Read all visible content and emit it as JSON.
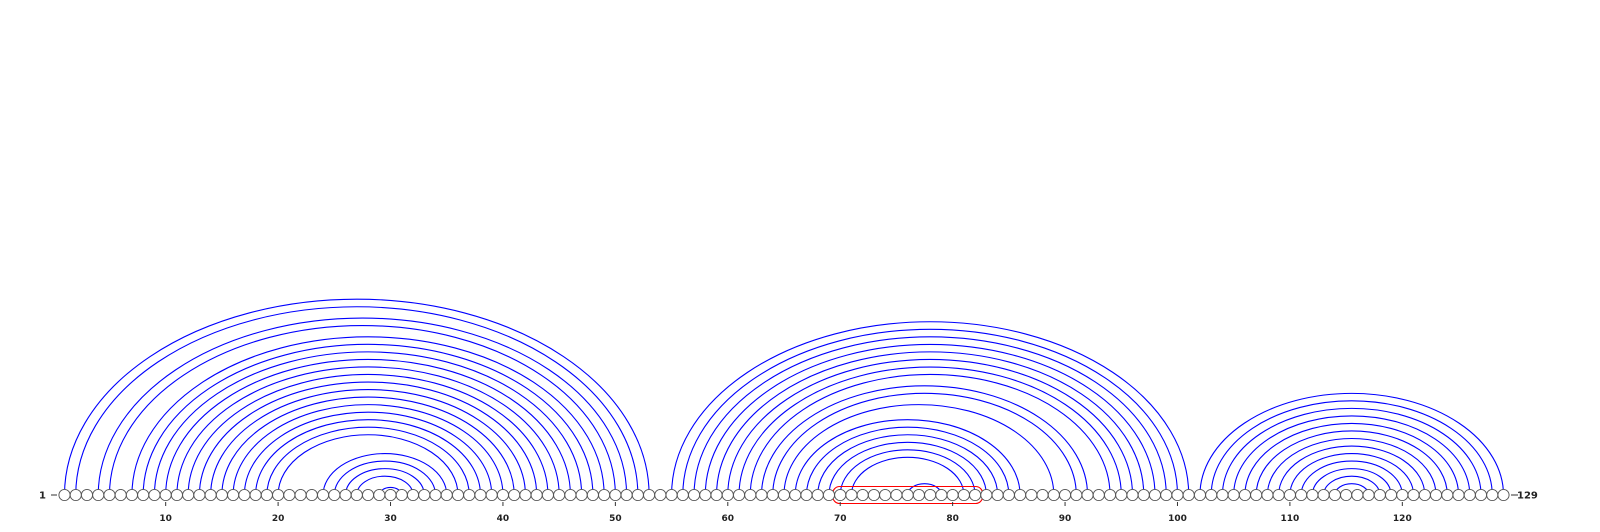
{
  "diagram": {
    "type": "rna-arc-diagram",
    "sequence_length": 129,
    "start_label": "1",
    "end_label": "129",
    "tick_positions": [
      10,
      20,
      30,
      40,
      50,
      60,
      70,
      80,
      90,
      100,
      110,
      120
    ],
    "tick_labels": [
      "10",
      "20",
      "30",
      "40",
      "50",
      "60",
      "70",
      "80",
      "90",
      "100",
      "110",
      "120"
    ],
    "arc_color": "#0000ff",
    "highlight_color": "#ff0000",
    "highlight_range": [
      70,
      82
    ],
    "base_pairs": [
      [
        1,
        53
      ],
      [
        2,
        52
      ],
      [
        4,
        51
      ],
      [
        5,
        50
      ],
      [
        7,
        49
      ],
      [
        8,
        48
      ],
      [
        9,
        47
      ],
      [
        10,
        46
      ],
      [
        11,
        45
      ],
      [
        12,
        44
      ],
      [
        13,
        43
      ],
      [
        14,
        42
      ],
      [
        15,
        41
      ],
      [
        16,
        40
      ],
      [
        17,
        39
      ],
      [
        18,
        38
      ],
      [
        19,
        37
      ],
      [
        20,
        36
      ],
      [
        24,
        35
      ],
      [
        25,
        34
      ],
      [
        26,
        33
      ],
      [
        27,
        32
      ],
      [
        29,
        31
      ],
      [
        55,
        101
      ],
      [
        56,
        100
      ],
      [
        57,
        99
      ],
      [
        58,
        98
      ],
      [
        59,
        97
      ],
      [
        60,
        96
      ],
      [
        61,
        95
      ],
      [
        62,
        94
      ],
      [
        63,
        92
      ],
      [
        64,
        91
      ],
      [
        65,
        89
      ],
      [
        66,
        86
      ],
      [
        67,
        85
      ],
      [
        68,
        84
      ],
      [
        69,
        83
      ],
      [
        70,
        82
      ],
      [
        71,
        81
      ],
      [
        76,
        79
      ],
      [
        102,
        129
      ],
      [
        103,
        128
      ],
      [
        104,
        127
      ],
      [
        105,
        126
      ],
      [
        106,
        125
      ],
      [
        107,
        124
      ],
      [
        108,
        123
      ],
      [
        109,
        122
      ],
      [
        110,
        121
      ],
      [
        111,
        120
      ],
      [
        112,
        119
      ],
      [
        113,
        118
      ],
      [
        114,
        117
      ]
    ]
  }
}
